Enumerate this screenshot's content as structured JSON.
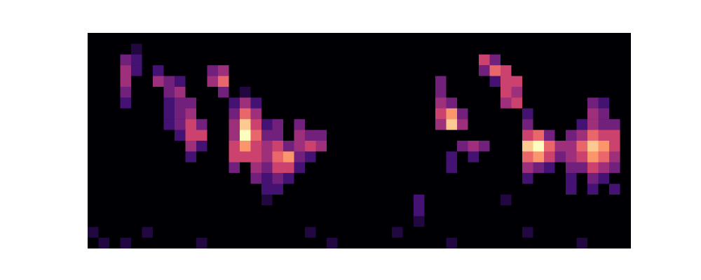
{
  "chart_data": {
    "type": "heatmap",
    "tick_labels": false,
    "zlim": [
      0,
      9
    ],
    "z": [
      [
        0,
        0,
        0,
        0,
        0,
        0,
        0,
        0,
        0,
        0,
        0,
        0,
        0,
        0,
        0,
        0,
        0,
        0,
        0,
        0,
        0,
        0,
        0,
        0,
        0,
        0,
        0,
        0,
        0,
        0,
        0,
        0,
        0,
        0,
        0,
        0,
        0,
        0,
        0,
        0,
        0,
        0,
        0,
        0,
        0,
        0,
        0,
        0,
        0,
        0
      ],
      [
        0,
        0,
        0,
        0,
        1,
        0,
        0,
        0,
        0,
        0,
        0,
        0,
        0,
        0,
        0,
        0,
        0,
        0,
        0,
        0,
        0,
        0,
        0,
        0,
        0,
        0,
        0,
        0,
        0,
        0,
        0,
        0,
        0,
        0,
        0,
        0,
        0,
        0,
        0,
        0,
        0,
        0,
        0,
        0,
        0,
        0,
        0,
        0,
        0,
        0
      ],
      [
        0,
        0,
        0,
        3,
        2,
        0,
        0,
        0,
        0,
        0,
        0,
        0,
        0,
        0,
        0,
        0,
        0,
        0,
        0,
        0,
        0,
        0,
        0,
        0,
        0,
        0,
        0,
        0,
        0,
        0,
        0,
        0,
        0,
        0,
        0,
        0,
        5,
        3,
        0,
        0,
        0,
        0,
        0,
        0,
        0,
        0,
        0,
        0,
        0,
        0
      ],
      [
        0,
        0,
        0,
        4,
        2,
        0,
        2,
        0,
        0,
        0,
        0,
        3,
        4,
        0,
        0,
        0,
        0,
        0,
        0,
        0,
        0,
        0,
        0,
        0,
        0,
        0,
        0,
        0,
        0,
        0,
        0,
        0,
        0,
        0,
        0,
        0,
        3,
        6,
        5,
        0,
        0,
        0,
        0,
        0,
        0,
        0,
        0,
        0,
        0,
        0
      ],
      [
        0,
        0,
        0,
        4,
        0,
        0,
        4,
        3,
        2,
        0,
        0,
        4,
        6,
        0,
        0,
        0,
        0,
        0,
        0,
        0,
        0,
        0,
        0,
        0,
        0,
        0,
        0,
        0,
        0,
        0,
        0,
        0,
        3,
        0,
        0,
        0,
        0,
        2,
        5,
        5,
        0,
        0,
        0,
        0,
        0,
        0,
        0,
        0,
        0,
        0
      ],
      [
        0,
        0,
        0,
        3,
        0,
        0,
        0,
        3,
        4,
        0,
        0,
        0,
        3,
        0,
        1,
        0,
        0,
        0,
        0,
        0,
        0,
        0,
        0,
        0,
        0,
        0,
        0,
        0,
        0,
        0,
        0,
        0,
        3,
        0,
        0,
        0,
        0,
        0,
        5,
        4,
        0,
        0,
        0,
        0,
        0,
        0,
        0,
        0,
        0,
        0
      ],
      [
        0,
        0,
        0,
        2,
        0,
        0,
        0,
        2,
        3,
        3,
        0,
        0,
        0,
        2,
        4,
        2,
        0,
        0,
        0,
        0,
        0,
        0,
        0,
        0,
        0,
        0,
        0,
        0,
        0,
        0,
        0,
        0,
        4,
        3,
        0,
        0,
        0,
        0,
        4,
        5,
        0,
        0,
        0,
        0,
        0,
        0,
        3,
        2,
        0,
        0
      ],
      [
        0,
        0,
        0,
        0,
        0,
        0,
        0,
        2,
        3,
        4,
        0,
        0,
        0,
        3,
        6,
        4,
        0,
        0,
        0,
        0,
        0,
        0,
        0,
        0,
        0,
        0,
        0,
        0,
        0,
        0,
        0,
        0,
        5,
        7,
        3,
        0,
        0,
        0,
        0,
        0,
        2,
        0,
        0,
        0,
        0,
        0,
        4,
        3,
        0,
        0
      ],
      [
        0,
        0,
        0,
        0,
        0,
        0,
        0,
        2,
        3,
        5,
        3,
        0,
        0,
        4,
        8,
        5,
        2,
        3,
        0,
        3,
        0,
        0,
        0,
        0,
        0,
        0,
        0,
        0,
        0,
        0,
        0,
        0,
        4,
        8,
        4,
        0,
        0,
        0,
        0,
        0,
        3,
        0,
        0,
        0,
        0,
        2,
        4,
        3,
        3,
        0
      ],
      [
        0,
        0,
        0,
        0,
        0,
        0,
        0,
        0,
        2,
        5,
        5,
        0,
        0,
        4,
        9,
        6,
        3,
        3,
        0,
        4,
        3,
        3,
        0,
        0,
        0,
        0,
        0,
        0,
        0,
        0,
        0,
        0,
        0,
        0,
        0,
        0,
        0,
        0,
        0,
        0,
        5,
        6,
        3,
        0,
        3,
        4,
        6,
        5,
        5,
        0
      ],
      [
        0,
        0,
        0,
        0,
        0,
        0,
        0,
        0,
        0,
        4,
        2,
        0,
        0,
        5,
        7,
        5,
        4,
        5,
        3,
        4,
        5,
        4,
        0,
        0,
        0,
        0,
        0,
        0,
        0,
        0,
        0,
        0,
        0,
        0,
        3,
        4,
        3,
        0,
        0,
        0,
        8,
        9,
        6,
        4,
        4,
        6,
        8,
        7,
        5,
        0
      ],
      [
        0,
        0,
        0,
        0,
        0,
        0,
        0,
        0,
        0,
        2,
        0,
        0,
        0,
        5,
        5,
        5,
        4,
        6,
        7,
        3,
        2,
        0,
        0,
        0,
        0,
        0,
        0,
        0,
        0,
        0,
        0,
        0,
        0,
        2,
        0,
        2,
        0,
        0,
        0,
        0,
        6,
        7,
        5,
        3,
        4,
        5,
        7,
        6,
        4,
        0
      ],
      [
        0,
        0,
        0,
        0,
        0,
        0,
        0,
        0,
        0,
        0,
        0,
        0,
        0,
        3,
        0,
        4,
        3,
        5,
        5,
        2,
        0,
        0,
        0,
        0,
        0,
        0,
        0,
        0,
        0,
        0,
        0,
        0,
        0,
        2,
        0,
        0,
        0,
        0,
        0,
        0,
        4,
        3,
        2,
        0,
        3,
        3,
        5,
        4,
        3,
        0
      ],
      [
        0,
        0,
        0,
        0,
        0,
        0,
        0,
        0,
        0,
        0,
        0,
        0,
        0,
        0,
        0,
        3,
        2,
        3,
        2,
        0,
        0,
        0,
        0,
        0,
        0,
        0,
        0,
        0,
        0,
        0,
        0,
        0,
        0,
        0,
        0,
        0,
        0,
        0,
        0,
        0,
        2,
        0,
        0,
        0,
        2,
        0,
        3,
        2,
        0,
        0
      ],
      [
        0,
        0,
        0,
        0,
        0,
        0,
        0,
        0,
        0,
        0,
        0,
        0,
        0,
        0,
        0,
        0,
        2,
        2,
        0,
        0,
        0,
        0,
        0,
        0,
        0,
        0,
        0,
        0,
        0,
        0,
        0,
        0,
        0,
        0,
        0,
        0,
        0,
        0,
        0,
        0,
        0,
        0,
        0,
        0,
        2,
        0,
        2,
        0,
        2,
        0
      ],
      [
        0,
        0,
        0,
        0,
        0,
        0,
        0,
        0,
        0,
        0,
        0,
        0,
        0,
        0,
        0,
        0,
        1,
        0,
        0,
        0,
        0,
        0,
        0,
        0,
        0,
        0,
        0,
        0,
        0,
        0,
        2,
        0,
        0,
        0,
        0,
        0,
        0,
        0,
        1,
        0,
        0,
        0,
        0,
        0,
        0,
        0,
        0,
        0,
        0,
        0
      ],
      [
        0,
        0,
        0,
        0,
        0,
        0,
        0,
        0,
        0,
        0,
        0,
        0,
        0,
        0,
        0,
        0,
        0,
        0,
        0,
        0,
        0,
        0,
        0,
        0,
        0,
        0,
        0,
        0,
        0,
        0,
        2,
        0,
        0,
        0,
        0,
        0,
        0,
        0,
        0,
        0,
        0,
        0,
        0,
        0,
        0,
        0,
        0,
        0,
        0,
        0
      ],
      [
        0,
        0,
        0,
        0,
        0,
        0,
        0,
        0,
        0,
        0,
        0,
        0,
        0,
        0,
        0,
        0,
        0,
        0,
        0,
        0,
        0,
        0,
        0,
        0,
        0,
        0,
        0,
        0,
        0,
        0,
        1,
        0,
        0,
        0,
        0,
        0,
        0,
        0,
        0,
        0,
        0,
        0,
        0,
        0,
        0,
        0,
        0,
        0,
        0,
        0
      ],
      [
        1,
        0,
        0,
        0,
        0,
        1,
        0,
        0,
        0,
        0,
        0,
        0,
        0,
        0,
        0,
        0,
        0,
        0,
        0,
        0,
        1,
        0,
        0,
        0,
        0,
        0,
        0,
        0,
        1,
        0,
        0,
        0,
        0,
        0,
        0,
        0,
        0,
        0,
        0,
        0,
        1,
        0,
        0,
        0,
        0,
        0,
        0,
        0,
        0,
        0
      ],
      [
        0,
        1,
        0,
        1,
        0,
        0,
        0,
        0,
        0,
        0,
        1,
        0,
        0,
        0,
        0,
        0,
        0,
        0,
        0,
        0,
        0,
        0,
        1,
        0,
        0,
        0,
        0,
        0,
        0,
        0,
        0,
        0,
        0,
        1,
        0,
        0,
        0,
        0,
        0,
        0,
        0,
        0,
        0,
        0,
        0,
        1,
        0,
        0,
        0,
        0
      ]
    ]
  }
}
